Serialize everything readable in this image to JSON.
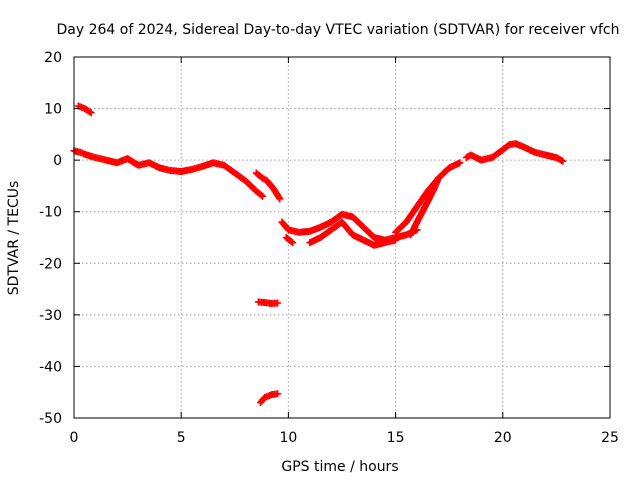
{
  "chart_data": {
    "type": "scatter",
    "title": "Day 264 of 2024, Sidereal Day-to-day VTEC variation (SDTVAR) for receiver vfch",
    "xlabel": "GPS time / hours",
    "ylabel": "SDTVAR / TECUs",
    "xlim": [
      0,
      25
    ],
    "ylim": [
      -50,
      20
    ],
    "xticks": [
      0,
      5,
      10,
      15,
      20,
      25
    ],
    "yticks": [
      -50,
      -40,
      -30,
      -20,
      -10,
      0,
      10,
      20
    ],
    "grid": true,
    "marker": "+",
    "color": "#ff0000",
    "series": [
      {
        "name": "main arc",
        "points": [
          [
            0.0,
            1.8
          ],
          [
            0.3,
            1.5
          ],
          [
            0.6,
            1.0
          ],
          [
            1.0,
            0.5
          ],
          [
            1.5,
            0.0
          ],
          [
            2.0,
            -0.5
          ],
          [
            2.5,
            0.3
          ],
          [
            3.0,
            -1.0
          ],
          [
            3.5,
            -0.5
          ],
          [
            4.0,
            -1.5
          ],
          [
            4.5,
            -2.0
          ],
          [
            5.0,
            -2.2
          ],
          [
            5.5,
            -1.8
          ],
          [
            6.0,
            -1.2
          ],
          [
            6.5,
            -0.5
          ],
          [
            7.0,
            -1.0
          ],
          [
            7.5,
            -2.5
          ],
          [
            8.0,
            -4.0
          ],
          [
            8.5,
            -6.0
          ],
          [
            8.8,
            -7.0
          ]
        ]
      },
      {
        "name": "early high segment",
        "points": [
          [
            0.2,
            10.5
          ],
          [
            0.5,
            10.0
          ],
          [
            0.8,
            9.2
          ]
        ]
      },
      {
        "name": "secondary arc 8-9.5h",
        "points": [
          [
            8.5,
            -2.5
          ],
          [
            8.8,
            -3.5
          ],
          [
            9.0,
            -4.0
          ],
          [
            9.3,
            -5.5
          ],
          [
            9.6,
            -7.5
          ]
        ]
      },
      {
        "name": "low segment -28",
        "points": [
          [
            8.6,
            -27.5
          ],
          [
            8.9,
            -27.6
          ],
          [
            9.2,
            -27.8
          ],
          [
            9.5,
            -27.7
          ]
        ]
      },
      {
        "name": "low segment -46",
        "points": [
          [
            8.7,
            -47.0
          ],
          [
            8.9,
            -46.0
          ],
          [
            9.2,
            -45.5
          ],
          [
            9.5,
            -45.3
          ]
        ]
      },
      {
        "name": "night trough",
        "points": [
          [
            9.7,
            -12.0
          ],
          [
            10.0,
            -13.5
          ],
          [
            10.5,
            -14.0
          ],
          [
            11.0,
            -13.8
          ],
          [
            11.5,
            -13.0
          ],
          [
            12.0,
            -12.0
          ],
          [
            12.5,
            -10.5
          ],
          [
            13.0,
            -11.0
          ],
          [
            13.5,
            -13.0
          ],
          [
            14.0,
            -15.0
          ],
          [
            14.5,
            -15.5
          ],
          [
            15.0,
            -15.0
          ],
          [
            15.5,
            -14.5
          ],
          [
            16.0,
            -13.5
          ]
        ]
      },
      {
        "name": "trough short segment",
        "points": [
          [
            9.9,
            -15.0
          ],
          [
            10.2,
            -16.0
          ]
        ]
      },
      {
        "name": "trough second track",
        "points": [
          [
            11.0,
            -16.0
          ],
          [
            11.5,
            -15.0
          ],
          [
            12.0,
            -13.5
          ],
          [
            12.5,
            -12.0
          ],
          [
            13.0,
            -14.5
          ],
          [
            13.5,
            -15.5
          ],
          [
            14.0,
            -16.5
          ],
          [
            14.5,
            -16.0
          ],
          [
            15.0,
            -15.5
          ]
        ]
      },
      {
        "name": "morning rise",
        "points": [
          [
            15.0,
            -14.0
          ],
          [
            15.5,
            -12.0
          ],
          [
            16.0,
            -9.0
          ],
          [
            16.5,
            -6.0
          ],
          [
            17.0,
            -3.5
          ],
          [
            17.5,
            -1.5
          ],
          [
            18.0,
            -0.5
          ]
        ]
      },
      {
        "name": "morning rise second track",
        "points": [
          [
            15.7,
            -14.5
          ],
          [
            16.0,
            -12.0
          ],
          [
            16.5,
            -8.0
          ],
          [
            16.8,
            -5.5
          ],
          [
            17.0,
            -3.5
          ]
        ]
      },
      {
        "name": "day segment",
        "points": [
          [
            18.3,
            0.5
          ],
          [
            18.5,
            1.0
          ],
          [
            19.0,
            0.0
          ],
          [
            19.5,
            0.5
          ],
          [
            20.0,
            2.0
          ],
          [
            20.3,
            3.0
          ],
          [
            20.6,
            3.2
          ],
          [
            21.0,
            2.5
          ],
          [
            21.5,
            1.5
          ],
          [
            22.0,
            1.0
          ],
          [
            22.5,
            0.5
          ],
          [
            22.8,
            -0.2
          ]
        ]
      }
    ]
  }
}
